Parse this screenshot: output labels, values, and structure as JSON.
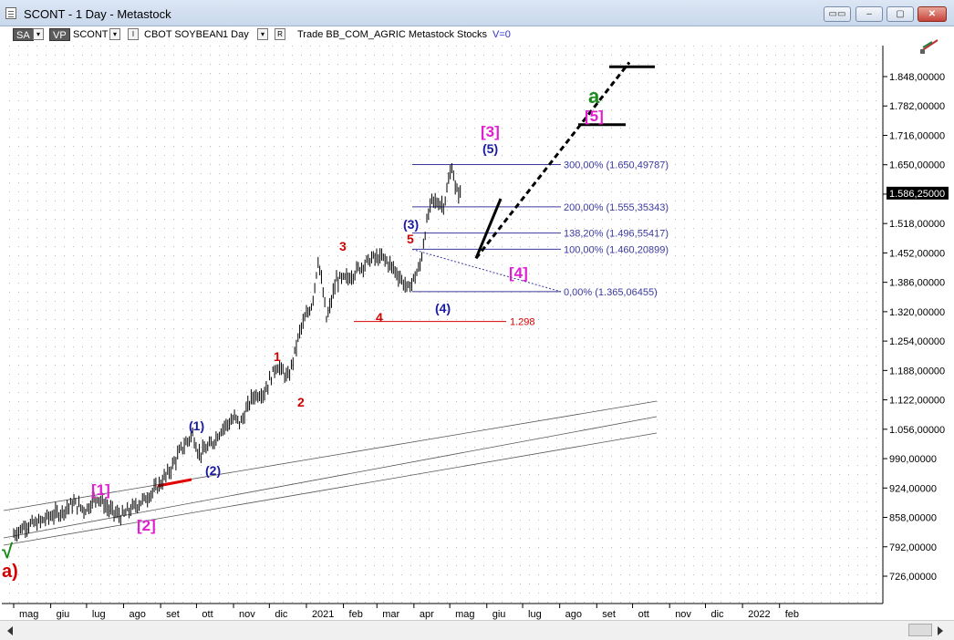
{
  "window": {
    "title": "SCONT - 1 Day - Metastock",
    "btn_min": "‒",
    "btn_max": "▢",
    "btn_close": "✕"
  },
  "toolbar": {
    "tag_sa": "SA",
    "tag_vp": "VP",
    "symbol": "SCONT",
    "chart_i": "I",
    "name": "CBOT SOYBEAN",
    "period": "1 Day",
    "chart_r": "R",
    "tail": "Trade  BB_COM_AGRIC  Metastock  Stocks",
    "v": "V=0",
    "dd_arrow": "▾"
  },
  "colors": {
    "red": "#d40000",
    "magenta": "#e020d0",
    "navy": "#1a1aa0",
    "green": "#1a8a1a",
    "fib": "#3a3aa0",
    "trend": "#555555"
  },
  "chart_data": {
    "type": "line",
    "title": "",
    "xlabel": "",
    "ylabel": "",
    "ylim": [
      660,
      1914
    ],
    "y_ticks": [
      "1.848,00000",
      "1.782,00000",
      "1.716,00000",
      "1.650,00000",
      "1.584,00000",
      "1.518,00000",
      "1.452,00000",
      "1.386,00000",
      "1.320,00000",
      "1.254,00000",
      "1.188,00000",
      "1.122,00000",
      "1.056,00000",
      "990,00000",
      "924,00000",
      "858,00000",
      "792,00000",
      "726,00000"
    ],
    "y_tick_values": [
      1848,
      1782,
      1716,
      1650,
      1584,
      1518,
      1452,
      1386,
      1320,
      1254,
      1188,
      1122,
      1056,
      990,
      924,
      858,
      792,
      726
    ],
    "x_ticks": [
      "mag",
      "giu",
      "lug",
      "ago",
      "set",
      "ott",
      "nov",
      "dic",
      "2021",
      "feb",
      "mar",
      "apr",
      "mag",
      "giu",
      "lug",
      "ago",
      "set",
      "ott",
      "nov",
      "dic",
      "2022",
      "feb"
    ],
    "x_tick_days": [
      0,
      31,
      61,
      92,
      123,
      153,
      184,
      214,
      245,
      276,
      304,
      335,
      365,
      396,
      426,
      457,
      488,
      518,
      549,
      579,
      610,
      641
    ],
    "last_price_label": "1.586,25000",
    "last_price": 1586.25,
    "series": [
      {
        "x": [
          0,
          10,
          20,
          30,
          40,
          50,
          60,
          70,
          80,
          90,
          100,
          110,
          120,
          130,
          140,
          150,
          155,
          165,
          175,
          185,
          190,
          200,
          210,
          220,
          230,
          240,
          250,
          255,
          262,
          270,
          280,
          290,
          300,
          310,
          320,
          330,
          340,
          345,
          350,
          360,
          367,
          370,
          375
        ],
        "values": [
          820,
          840,
          845,
          860,
          870,
          890,
          875,
          905,
          875,
          860,
          880,
          900,
          925,
          960,
          1010,
          1045,
          1000,
          1020,
          1060,
          1080,
          1070,
          1130,
          1140,
          1200,
          1170,
          1280,
          1340,
          1440,
          1300,
          1390,
          1395,
          1420,
          1440,
          1440,
          1410,
          1370,
          1420,
          1510,
          1570,
          1560,
          1650,
          1590,
          1586
        ]
      }
    ],
    "fib_levels": [
      {
        "label": "300,00% (1.650,49787)",
        "value": 1650.5
      },
      {
        "label": "200,00% (1.555,35343)",
        "value": 1555.35
      },
      {
        "label": "138,20% (1.496,55417)",
        "value": 1496.55
      },
      {
        "label": "100,00% (1.460,20899)",
        "value": 1460.21
      },
      {
        "label": "0,00% (1.365,06455)",
        "value": 1365.06
      }
    ],
    "support_level": {
      "label": "1.298",
      "value": 1298
    },
    "wave_labels": {
      "a_close": "a)",
      "check": "√",
      "w1": "[1]",
      "w2": "[2]",
      "w3": "[3]",
      "w4": "[4]",
      "w5": "[5]",
      "a": "a",
      "i1": "(1)",
      "i2": "(2)",
      "i3": "(3)",
      "i4": "(4)",
      "i5": "(5)",
      "m1": "1",
      "m2": "2",
      "m3": "3",
      "m4": "4",
      "m5": "5"
    },
    "projection": {
      "wave4_target": 1440,
      "wave5_target": 1740,
      "wave_a_target": 1870
    }
  }
}
